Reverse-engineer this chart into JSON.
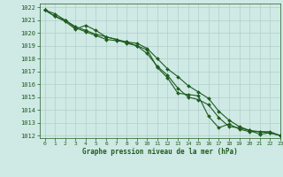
{
  "title": "Graphe pression niveau de la mer (hPa)",
  "background_color": "#cfe9e5",
  "plot_background": "#cfe9e5",
  "grid_color": "#b0d0cc",
  "line_color": "#1e5c1e",
  "xlim": [
    -0.5,
    23
  ],
  "ylim": [
    1011.8,
    1022.3
  ],
  "yticks": [
    1012,
    1013,
    1014,
    1015,
    1016,
    1017,
    1018,
    1019,
    1020,
    1021,
    1022
  ],
  "xticks": [
    0,
    1,
    2,
    3,
    4,
    5,
    6,
    7,
    8,
    9,
    10,
    11,
    12,
    13,
    14,
    15,
    16,
    17,
    18,
    19,
    20,
    21,
    22,
    23
  ],
  "series1_x": [
    0,
    1,
    2,
    3,
    4,
    5,
    6,
    7,
    8,
    9,
    10,
    11,
    12,
    13,
    14,
    15,
    16,
    17,
    18,
    19,
    20,
    21,
    22,
    23
  ],
  "series1_y": [
    1021.8,
    1021.3,
    1021.0,
    1020.4,
    1020.1,
    1019.8,
    1019.5,
    1019.4,
    1019.3,
    1019.2,
    1018.8,
    1018.0,
    1017.2,
    1016.6,
    1015.9,
    1015.4,
    1014.9,
    1013.9,
    1013.2,
    1012.7,
    1012.4,
    1012.3,
    1012.2,
    1012.0
  ],
  "series2_x": [
    0,
    1,
    2,
    3,
    4,
    5,
    6,
    7,
    8,
    9,
    10,
    11,
    12,
    13,
    14,
    15,
    16,
    17,
    18,
    19,
    20,
    21,
    22,
    23
  ],
  "series2_y": [
    1021.8,
    1021.3,
    1020.9,
    1020.3,
    1020.6,
    1020.2,
    1019.7,
    1019.5,
    1019.2,
    1019.0,
    1018.4,
    1017.4,
    1016.7,
    1015.7,
    1015.0,
    1014.8,
    1014.4,
    1013.4,
    1012.7,
    1012.6,
    1012.4,
    1012.1,
    1012.2,
    1012.0
  ],
  "series3_x": [
    0,
    1,
    2,
    3,
    4,
    5,
    6,
    7,
    8,
    9,
    10,
    11,
    12,
    13,
    14,
    15,
    16,
    17,
    18,
    19,
    20,
    21,
    22,
    23
  ],
  "series3_y": [
    1021.8,
    1021.5,
    1021.0,
    1020.5,
    1020.2,
    1019.9,
    1019.7,
    1019.5,
    1019.3,
    1019.0,
    1018.7,
    1017.3,
    1016.5,
    1015.3,
    1015.2,
    1015.1,
    1013.5,
    1012.6,
    1012.9,
    1012.5,
    1012.3,
    1012.3,
    1012.3,
    1012.0
  ],
  "marker": "D",
  "markersize": 2.0,
  "linewidth": 0.8,
  "label_fontsize": 5.0,
  "xlabel_fontsize": 5.5,
  "tick_fontsize": 4.5,
  "ytick_fontsize": 5.0
}
